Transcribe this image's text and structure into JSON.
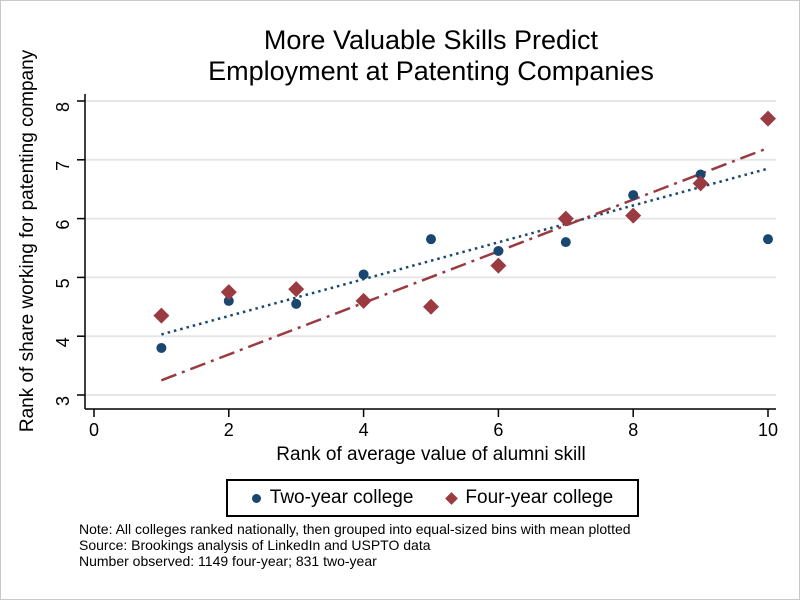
{
  "chart_data": {
    "type": "scatter",
    "title": "More Valuable Skills Predict Employment at Patenting Companies",
    "title_lines": [
      "More Valuable Skills Predict",
      "Employment at Patenting Companies"
    ],
    "xlabel": "Rank of average value of alumni skill",
    "ylabel": "Rank of share working for patenting company",
    "xlim": [
      0,
      10.2
    ],
    "ylim": [
      2.8,
      8.15
    ],
    "x_ticks": [
      0,
      2,
      4,
      6,
      8,
      10
    ],
    "y_ticks": [
      3,
      4,
      5,
      6,
      7,
      8
    ],
    "grid": true,
    "grid_color": "#e6e6e6",
    "axis_color": "#000000",
    "legend_position": "bottom-outside",
    "series": [
      {
        "name": "Two-year college",
        "marker": "circle",
        "color": "#1a476f",
        "fit_style": "dotted",
        "x": [
          1,
          2,
          3,
          4,
          5,
          6,
          7,
          8,
          9,
          10
        ],
        "y": [
          3.8,
          4.6,
          4.55,
          5.05,
          5.65,
          5.45,
          5.6,
          6.4,
          6.75,
          5.65
        ],
        "fit_line": {
          "x": [
            1,
            10
          ],
          "y": [
            4.03,
            6.85
          ]
        }
      },
      {
        "name": "Four-year college",
        "marker": "diamond",
        "color": "#9a3b42",
        "fit_style": "dash-dot",
        "x": [
          1,
          2,
          3,
          4,
          5,
          6,
          7,
          8,
          9,
          10
        ],
        "y": [
          4.35,
          4.75,
          4.8,
          4.6,
          4.5,
          5.2,
          6.0,
          6.05,
          6.6,
          7.7
        ],
        "fit_line": {
          "x": [
            1,
            10
          ],
          "y": [
            3.25,
            7.2
          ]
        }
      }
    ],
    "notes": [
      "Note: All colleges ranked nationally, then grouped into equal-sized bins with mean plotted",
      "Source: Brookings analysis of LinkedIn and USPTO data",
      "Number observed: 1149 four-year; 831 two-year"
    ]
  }
}
